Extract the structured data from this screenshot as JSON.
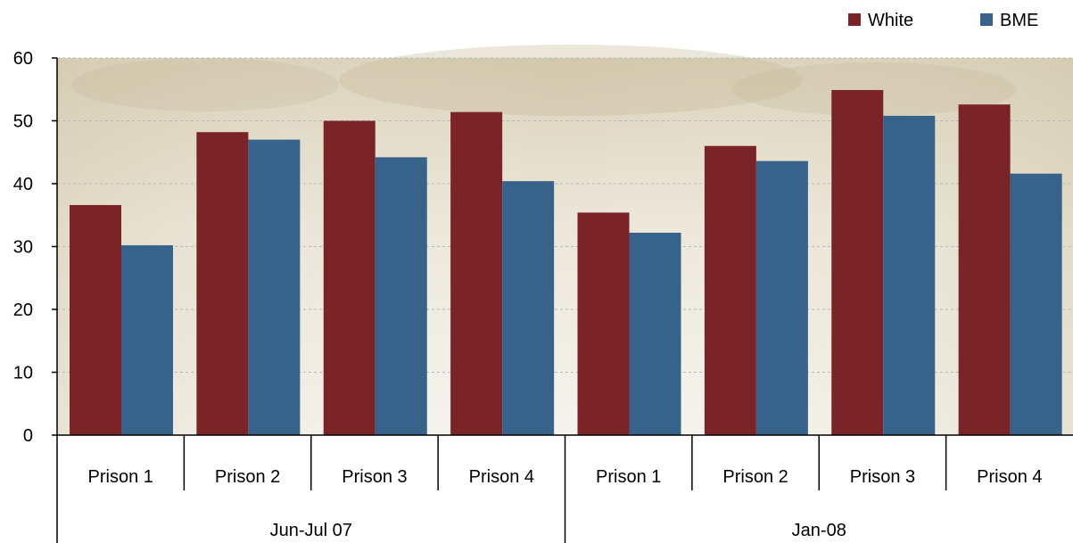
{
  "chart_data": {
    "type": "bar",
    "groups": [
      {
        "label": "Jun-Jul 07",
        "categories": [
          "Prison 1",
          "Prison 2",
          "Prison 3",
          "Prison 4"
        ]
      },
      {
        "label": "Jan-08",
        "categories": [
          "Prison 1",
          "Prison 2",
          "Prison 3",
          "Prison 4"
        ]
      }
    ],
    "series": [
      {
        "name": "White",
        "color": "#7a2427",
        "values": [
          36.6,
          48.2,
          50.0,
          51.4,
          35.4,
          46.0,
          54.9,
          52.6
        ]
      },
      {
        "name": "BME",
        "color": "#37628a",
        "values": [
          30.2,
          47.0,
          44.2,
          40.4,
          32.2,
          43.6,
          50.8,
          41.6
        ]
      }
    ],
    "ylim": [
      0,
      60
    ],
    "yticks": [
      0,
      10,
      20,
      30,
      40,
      50,
      60
    ],
    "grid": true,
    "legend_position": "top-right"
  }
}
